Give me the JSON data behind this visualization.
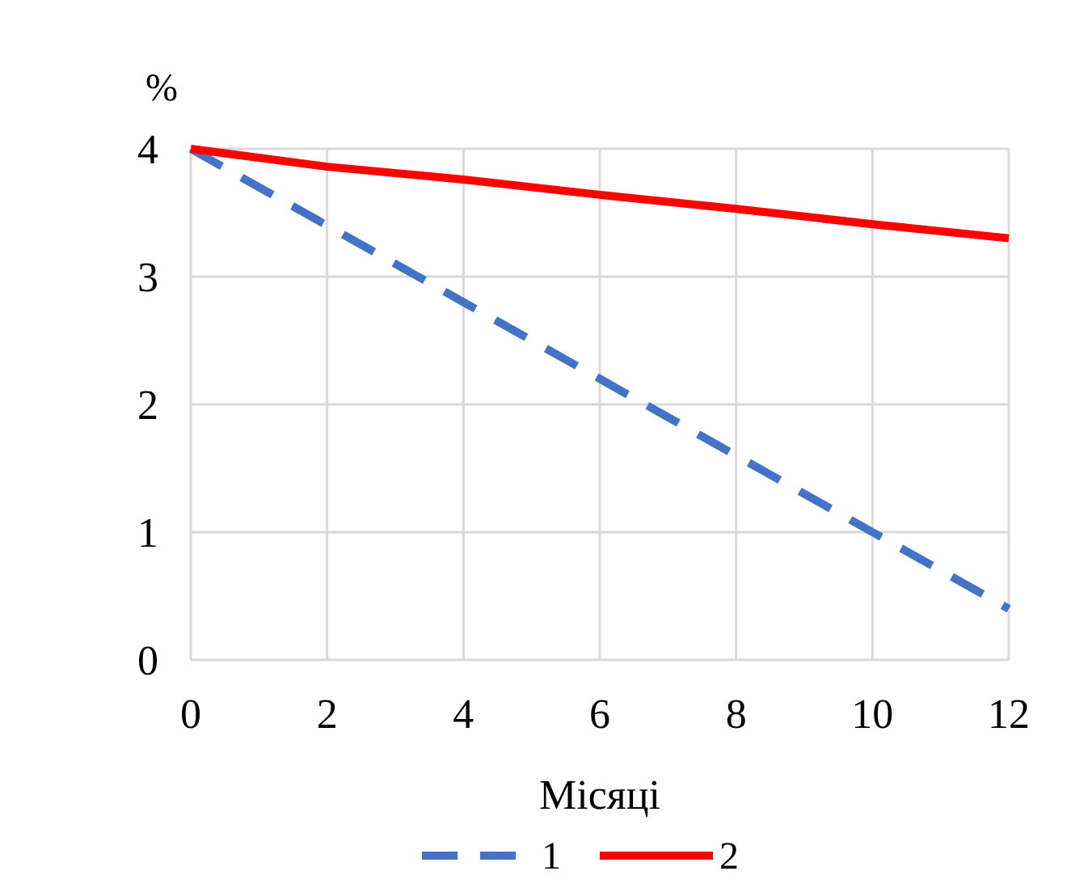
{
  "chart_data": {
    "type": "line",
    "xlabel": "Місяці",
    "ylabel": "%",
    "x": [
      0,
      2,
      4,
      6,
      8,
      10,
      12
    ],
    "series": [
      {
        "name": "1",
        "color": "#4472c4",
        "line_style": "dashed",
        "values": [
          4,
          3.4,
          2.8,
          2.2,
          1.6,
          1.0,
          0.4
        ]
      },
      {
        "name": "2",
        "color": "#ff0000",
        "line_style": "solid",
        "values": [
          4,
          3.86,
          3.76,
          3.64,
          3.53,
          3.41,
          3.3
        ]
      }
    ],
    "xlim": [
      0,
      12
    ],
    "xticks": [
      0,
      2,
      4,
      6,
      8,
      10,
      12
    ],
    "ylim": [
      0,
      4
    ],
    "yticks": [
      0,
      1,
      2,
      3,
      4
    ],
    "grid": true,
    "legend": "bottom",
    "marker": "none"
  }
}
